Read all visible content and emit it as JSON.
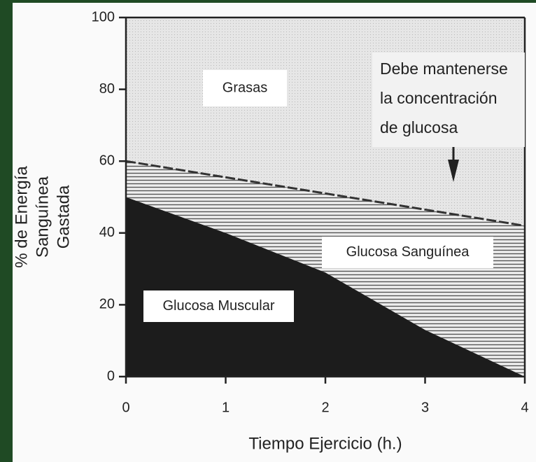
{
  "chart_data": {
    "type": "stacked-area",
    "x": [
      0,
      1,
      2,
      3,
      4
    ],
    "series": [
      {
        "name": "Glucosa Muscular",
        "color": "#1c1c1c",
        "values": [
          50,
          40,
          29,
          13,
          0
        ]
      },
      {
        "name": "Glucosa Sanguínea",
        "color": "#9a9a9a",
        "values": [
          10,
          15.5,
          22,
          33.5,
          42
        ]
      },
      {
        "name": "Grasas",
        "color": "#dcdcdc",
        "values": [
          40,
          44.5,
          49,
          53.5,
          58
        ]
      }
    ],
    "x_label": "Tiempo Ejercicio (h.)",
    "y_label": [
      "% de Energía",
      "Sanguínea",
      "Gastada"
    ],
    "annotation": [
      "Debe mantenerse",
      "la concentración",
      "de glucosa"
    ],
    "xlim": [
      0,
      4
    ],
    "xticks": [
      0,
      1,
      2,
      3,
      4
    ],
    "ylim": [
      0,
      100
    ],
    "yticks": [
      0,
      20,
      40,
      60,
      80,
      100
    ]
  }
}
